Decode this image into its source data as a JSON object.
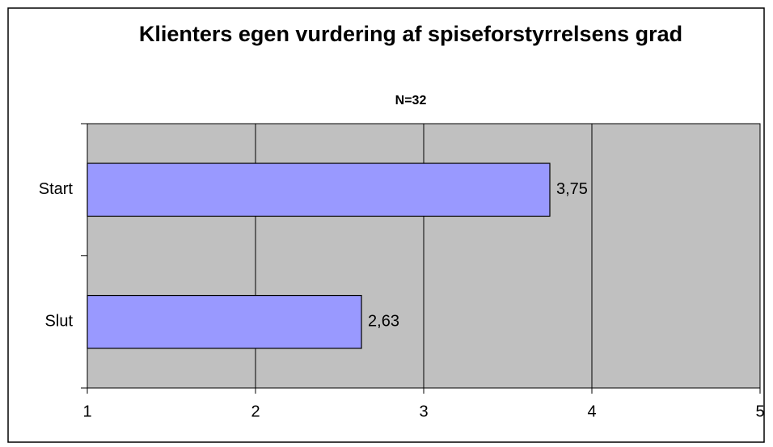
{
  "chart_data": {
    "type": "bar",
    "orientation": "horizontal",
    "title": "Klienters egen vurdering af spiseforstyrrelsens grad",
    "subtitle": "N=32",
    "categories": [
      "Start",
      "Slut"
    ],
    "values": [
      3.75,
      2.63
    ],
    "value_labels": [
      "3,75",
      "2,63"
    ],
    "color": "#9999ff",
    "xlim": [
      1,
      5
    ],
    "xticks": [
      1,
      2,
      3,
      4,
      5
    ],
    "grid": true
  }
}
